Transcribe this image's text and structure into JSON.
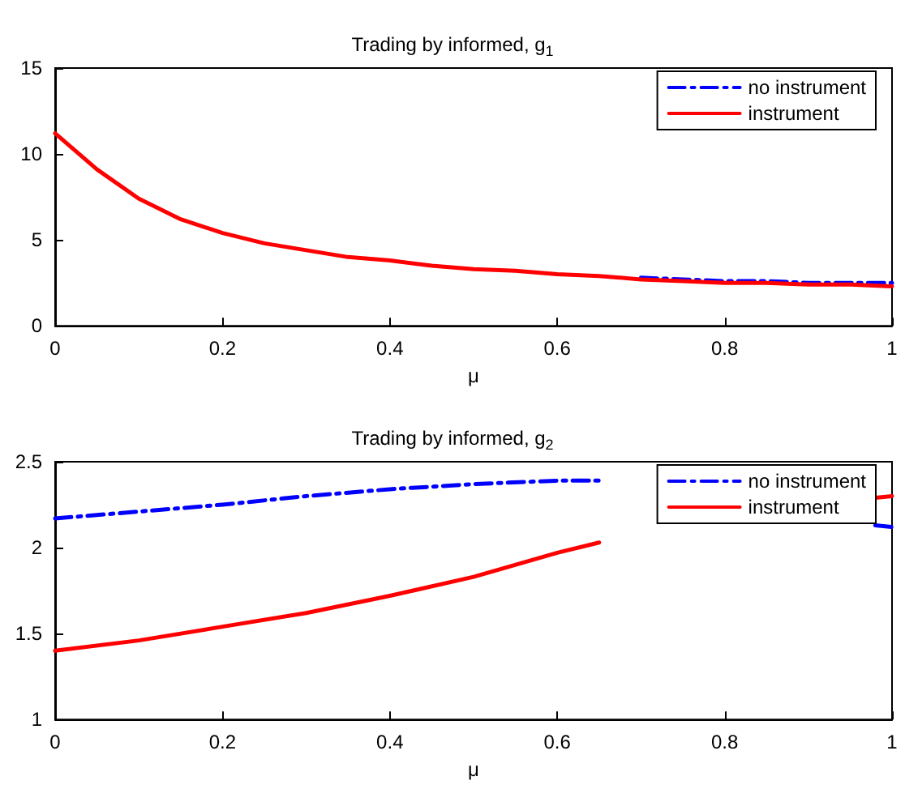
{
  "chart_data": [
    {
      "type": "line",
      "title": "Trading by informed, g$_{1}$",
      "xlabel": "μ",
      "xlim": [
        0,
        1
      ],
      "xticks": [
        0,
        0.2,
        0.4,
        0.6,
        0.8,
        1
      ],
      "ylim": [
        0,
        15
      ],
      "yticks": [
        0,
        5,
        10,
        15
      ],
      "grid": false,
      "legend": "top right",
      "marker": "none",
      "x": [
        0,
        0.05,
        0.1,
        0.15,
        0.2,
        0.25,
        0.3,
        0.35,
        0.4,
        0.45,
        0.5,
        0.55,
        0.6,
        0.65,
        0.7,
        0.75,
        0.8,
        0.85,
        0.9,
        0.95,
        1
      ],
      "series": [
        {
          "name": "no instrument",
          "color": "#0000ff",
          "line_style": "dashed",
          "values": [
            null,
            null,
            null,
            null,
            null,
            null,
            null,
            null,
            null,
            null,
            null,
            null,
            null,
            null,
            2.8,
            2.7,
            2.6,
            2.6,
            2.5,
            2.5,
            2.5
          ]
        },
        {
          "name": "instrument",
          "color": "#ff0000",
          "line_style": "solid",
          "values": [
            11.2,
            9.1,
            7.4,
            6.2,
            5.4,
            4.8,
            4.4,
            4.0,
            3.8,
            3.5,
            3.3,
            3.2,
            3.0,
            2.9,
            2.7,
            2.6,
            2.5,
            2.5,
            2.4,
            2.4,
            2.3
          ]
        }
      ]
    },
    {
      "type": "line",
      "title": "Trading by informed, g$_{2}$",
      "xlabel": "μ",
      "xlim": [
        0,
        1
      ],
      "xticks": [
        0,
        0.2,
        0.4,
        0.6,
        0.8,
        1
      ],
      "ylim": [
        1,
        2.5
      ],
      "yticks": [
        1,
        1.5,
        2,
        2.5
      ],
      "grid": false,
      "legend": "top right",
      "marker": "none",
      "x": [
        0,
        0.1,
        0.2,
        0.3,
        0.4,
        0.5,
        0.6,
        0.65,
        0.7,
        0.8,
        0.9,
        0.98,
        1
      ],
      "series": [
        {
          "name": "no instrument",
          "color": "#0000ff",
          "line_style": "dashed",
          "values": [
            2.17,
            2.21,
            2.25,
            2.3,
            2.34,
            2.37,
            2.39,
            2.39,
            null,
            null,
            null,
            2.13,
            2.12
          ]
        },
        {
          "name": "instrument",
          "color": "#ff0000",
          "line_style": "solid",
          "values": [
            1.4,
            1.46,
            1.54,
            1.62,
            1.72,
            1.83,
            1.97,
            2.03,
            null,
            null,
            null,
            2.29,
            2.3
          ]
        }
      ]
    }
  ]
}
